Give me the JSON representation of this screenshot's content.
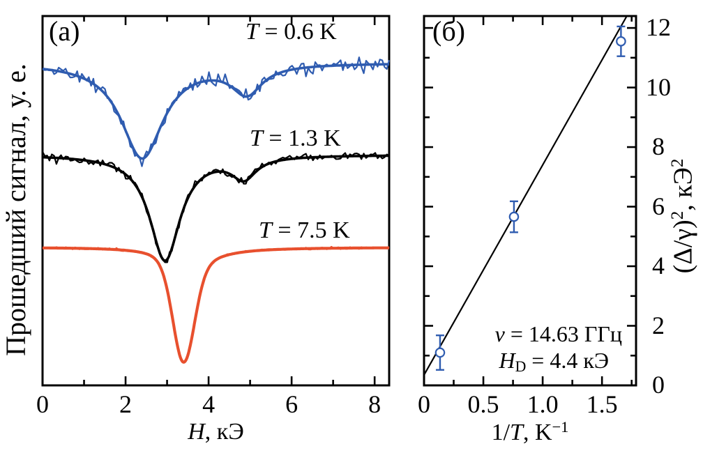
{
  "labels": {
    "panel_a": "(a)",
    "panel_b": "(б)",
    "t_labels": [
      {
        "var": "T",
        "rest": " = 0.6 K"
      },
      {
        "var": "T",
        "rest": " = 1.3 K"
      },
      {
        "var": "T",
        "rest": " = 7.5 K"
      }
    ],
    "xlabel_a": {
      "var": "H",
      "rest": ", кЭ"
    },
    "ylabel_a": "Прошедший сигнал, у. е.",
    "xlabel_b": {
      "pre": "1/",
      "var": "T",
      "rest": ", K",
      "sup": "−1"
    },
    "ylabel_b": {
      "p1": "(Δ/γ)",
      "sup1": "2",
      "p2": ", кЭ",
      "sup2": "2"
    },
    "x_ticks_a": [
      "0",
      "2",
      "4",
      "6",
      "8"
    ],
    "x_ticks_b": [
      "0",
      "0.5",
      "1.0",
      "1.5"
    ],
    "y_ticks_b": [
      "0",
      "2",
      "4",
      "6",
      "8",
      "10",
      "12"
    ]
  },
  "colors": {
    "axis": "#000000",
    "blue": "#2f5cb0",
    "black": "#000000",
    "red": "#e8502e",
    "background": "#ffffff"
  },
  "chart_data": [
    {
      "panel": "a",
      "type": "line",
      "title": "",
      "xlabel": "H, кЭ",
      "ylabel": "Прошедший сигнал, у. е.",
      "xlim": [
        0,
        8.35
      ],
      "ylim_note": "arbitrary units; three transmission spectra vertically offset, dips = magnetic resonance absorption",
      "x_major_ticks": [
        0,
        2,
        4,
        6,
        8
      ],
      "x_minor_ticks": [
        1,
        3,
        5,
        7
      ],
      "grid": false,
      "series": [
        {
          "name": "T = 0.6 K",
          "temperature_K": 0.6,
          "color": "#2f5cb0",
          "baseline_frac": 0.1264,
          "noise_amp_frac": 0.0145,
          "resonances": [
            {
              "center_kOe": 2.4,
              "hwhm_kOe": 0.62,
              "depth_frac": 0.257,
              "shape": "lorentzian"
            },
            {
              "center_kOe": 4.92,
              "hwhm_kOe": 0.45,
              "depth_frac": 0.077,
              "shape": "lorentzian"
            }
          ]
        },
        {
          "name": "T = 1.3 K",
          "temperature_K": 1.3,
          "color": "#000000",
          "baseline_frac": 0.3755,
          "noise_amp_frac": 0.009,
          "resonances": [
            {
              "center_kOe": 2.95,
              "hwhm_kOe": 0.45,
              "depth_frac": 0.285,
              "shape": "lorentzian"
            },
            {
              "center_kOe": 4.85,
              "hwhm_kOe": 0.36,
              "depth_frac": 0.057,
              "shape": "lorentzian"
            }
          ]
        },
        {
          "name": "T = 7.5 K",
          "temperature_K": 7.5,
          "color": "#e8502e",
          "baseline_frac": 0.6264,
          "noise_amp_frac": 0.0028,
          "resonances": [
            {
              "center_kOe": 3.4,
              "hwhm_kOe": 0.3,
              "depth_frac": 0.226,
              "shape": "gaussian"
            },
            {
              "center_kOe": 3.4,
              "hwhm_kOe": 0.45,
              "hwhm_right_kOe": 0.6,
              "depth_frac": 0.085,
              "shape": "lorentzian"
            }
          ]
        }
      ]
    },
    {
      "panel": "б",
      "type": "scatter",
      "title": "",
      "xlabel": "1/T, K⁻¹",
      "ylabel": "(Δ/γ)², кЭ²",
      "xlim": [
        0,
        1.787
      ],
      "ylim": [
        0,
        12.4
      ],
      "x_major_ticks": [
        0,
        0.5,
        1.0,
        1.5
      ],
      "x_minor_ticks": [
        0.25,
        0.75,
        1.25,
        1.75
      ],
      "y_major_ticks": [
        0,
        2,
        4,
        6,
        8,
        10,
        12
      ],
      "y_minor_ticks": [
        1,
        3,
        5,
        7,
        9,
        11
      ],
      "grid": false,
      "point_color": "#2f5cb0",
      "points": [
        {
          "x": 0.135,
          "y": 1.1,
          "yerr": 0.58
        },
        {
          "x": 0.758,
          "y": 5.66,
          "yerr": 0.52
        },
        {
          "x": 1.66,
          "y": 11.55,
          "yerr": 0.5
        }
      ],
      "fit_line": {
        "intercept": 0.35,
        "slope": 7.05,
        "color": "#000000"
      },
      "annotations": [
        {
          "var": "v",
          "rest": " = 14.63 ГГц"
        },
        {
          "var": "H",
          "sub": "D",
          "rest": " = 4.4 кЭ"
        }
      ]
    }
  ]
}
